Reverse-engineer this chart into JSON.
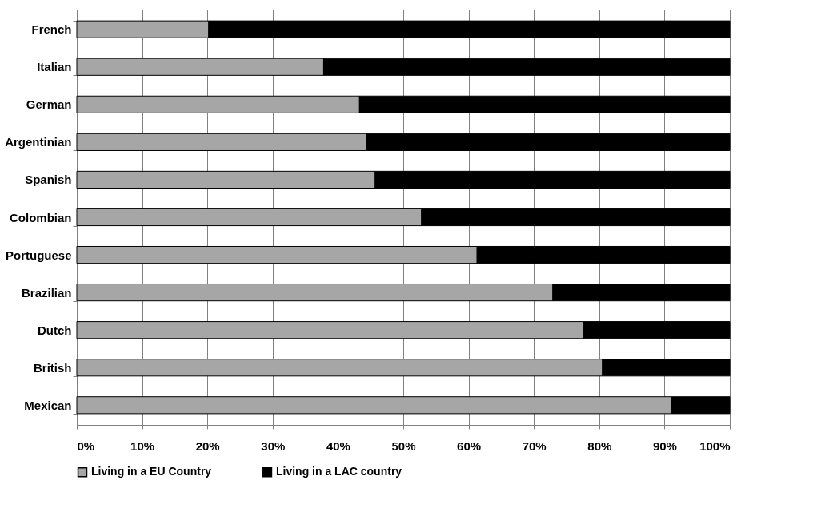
{
  "chart_data": {
    "type": "bar",
    "orientation": "horizontal",
    "stacked": true,
    "categories": [
      "French",
      "Italian",
      "German",
      "Argentinian",
      "Spanish",
      "Colombian",
      "Portuguese",
      "Brazilian",
      "Dutch",
      "British",
      "Mexican"
    ],
    "series": [
      {
        "name": "Living in a EU Country",
        "color": "#a6a6a6",
        "values": [
          20.2,
          37.8,
          43.3,
          44.4,
          45.7,
          52.8,
          61.3,
          72.9,
          77.6,
          80.5,
          91.0
        ]
      },
      {
        "name": "Living in a LAC country",
        "color": "#000000",
        "values": [
          79.8,
          62.2,
          56.7,
          55.6,
          54.3,
          47.2,
          38.7,
          27.1,
          22.4,
          19.5,
          9.0
        ]
      }
    ],
    "xlim": [
      0,
      100
    ],
    "xticks": [
      {
        "value": 0,
        "label": "0%"
      },
      {
        "value": 10,
        "label": "10%"
      },
      {
        "value": 20,
        "label": "20%"
      },
      {
        "value": 30,
        "label": "30%"
      },
      {
        "value": 40,
        "label": "40%"
      },
      {
        "value": 50,
        "label": "50%"
      },
      {
        "value": 60,
        "label": "60%"
      },
      {
        "value": 70,
        "label": "70%"
      },
      {
        "value": 80,
        "label": "80%"
      },
      {
        "value": 90,
        "label": "90%"
      },
      {
        "value": 100,
        "label": "100%"
      }
    ],
    "grid": "x",
    "legend": "bottom"
  }
}
